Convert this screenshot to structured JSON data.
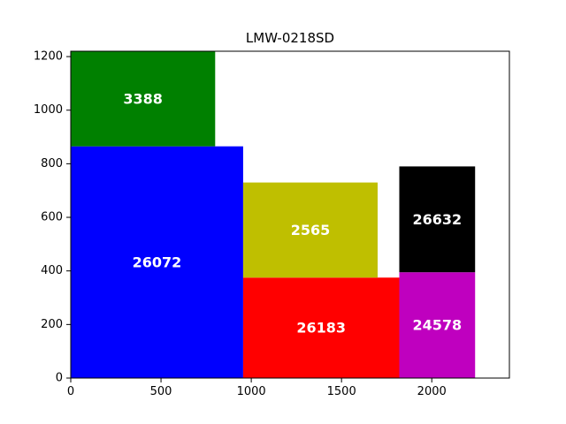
{
  "chart_data": {
    "type": "treemap",
    "title": "LMW-0218SD",
    "xlabel": "",
    "ylabel": "",
    "xlim": [
      0,
      2430
    ],
    "ylim": [
      0,
      1220
    ],
    "grid": false,
    "xticks": [
      {
        "value": 0,
        "label": "0"
      },
      {
        "value": 500,
        "label": "500"
      },
      {
        "value": 1000,
        "label": "1000"
      },
      {
        "value": 1500,
        "label": "1500"
      },
      {
        "value": 2000,
        "label": "2000"
      }
    ],
    "yticks": [
      {
        "value": 0,
        "label": "0"
      },
      {
        "value": 200,
        "label": "200"
      },
      {
        "value": 400,
        "label": "400"
      },
      {
        "value": 600,
        "label": "600"
      },
      {
        "value": 800,
        "label": "800"
      },
      {
        "value": 1000,
        "label": "1000"
      },
      {
        "value": 1200,
        "label": "1200"
      }
    ],
    "rectangles": [
      {
        "label": "26072",
        "x0": 0,
        "y0": 0,
        "x1": 955,
        "y1": 865,
        "color": "#0000ff"
      },
      {
        "label": "3388",
        "x0": 0,
        "y0": 865,
        "x1": 800,
        "y1": 1220,
        "color": "#008000"
      },
      {
        "label": "26183",
        "x0": 955,
        "y0": 0,
        "x1": 1820,
        "y1": 375,
        "color": "#ff0000"
      },
      {
        "label": "2565",
        "x0": 955,
        "y0": 375,
        "x1": 1700,
        "y1": 730,
        "color": "#bfbf00"
      },
      {
        "label": "24578",
        "x0": 1820,
        "y0": 0,
        "x1": 2240,
        "y1": 395,
        "color": "#bf00bf"
      },
      {
        "label": "26632",
        "x0": 1820,
        "y0": 395,
        "x1": 2240,
        "y1": 790,
        "color": "#000000"
      }
    ]
  }
}
